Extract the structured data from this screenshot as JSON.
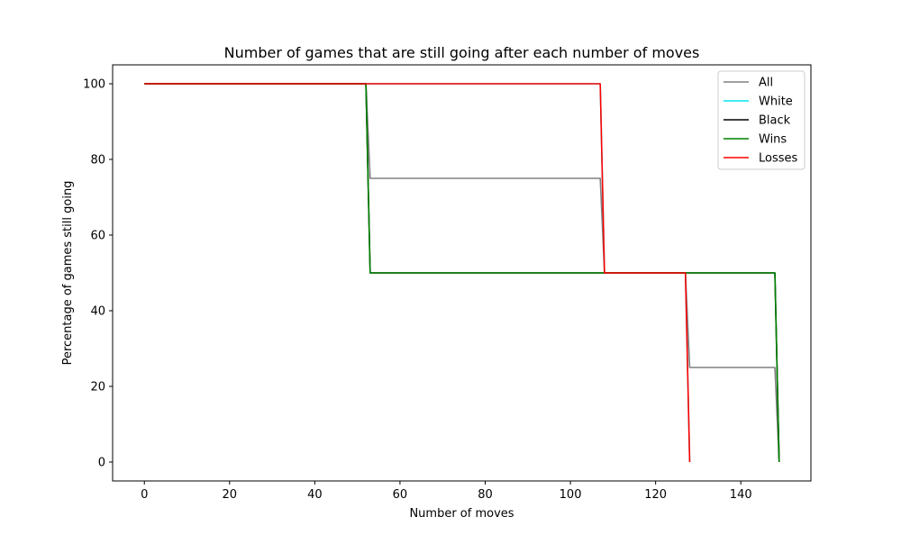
{
  "chart_data": {
    "type": "line",
    "title": "Number of games that are still going after each number of moves",
    "xlabel": "Number of moves",
    "ylabel": "Percentage of games still going",
    "xlim": [
      -7.45,
      156.45
    ],
    "ylim": [
      -5,
      105
    ],
    "xticks": [
      0,
      20,
      40,
      60,
      80,
      100,
      120,
      140
    ],
    "yticks": [
      0,
      20,
      40,
      60,
      80,
      100
    ],
    "grid": false,
    "legend_position": "top-right",
    "series": [
      {
        "name": "All",
        "color": "#808080",
        "x": [
          0,
          52,
          53,
          107,
          108,
          127,
          128,
          148,
          149
        ],
        "y": [
          100,
          100,
          75,
          75,
          50,
          50,
          25,
          25,
          0
        ]
      },
      {
        "name": "White",
        "color": "#00e5ee",
        "x": [
          0,
          107,
          108,
          127,
          128
        ],
        "y": [
          100,
          100,
          50,
          50,
          0
        ]
      },
      {
        "name": "Black",
        "color": "#000000",
        "x": [
          0,
          52,
          53,
          148,
          149
        ],
        "y": [
          100,
          100,
          50,
          50,
          0
        ]
      },
      {
        "name": "Wins",
        "color": "#008000",
        "x": [
          0,
          52,
          53,
          148,
          149
        ],
        "y": [
          100,
          100,
          50,
          50,
          0
        ]
      },
      {
        "name": "Losses",
        "color": "#ff0000",
        "x": [
          0,
          107,
          108,
          127,
          128
        ],
        "y": [
          100,
          100,
          50,
          50,
          0
        ]
      }
    ]
  }
}
